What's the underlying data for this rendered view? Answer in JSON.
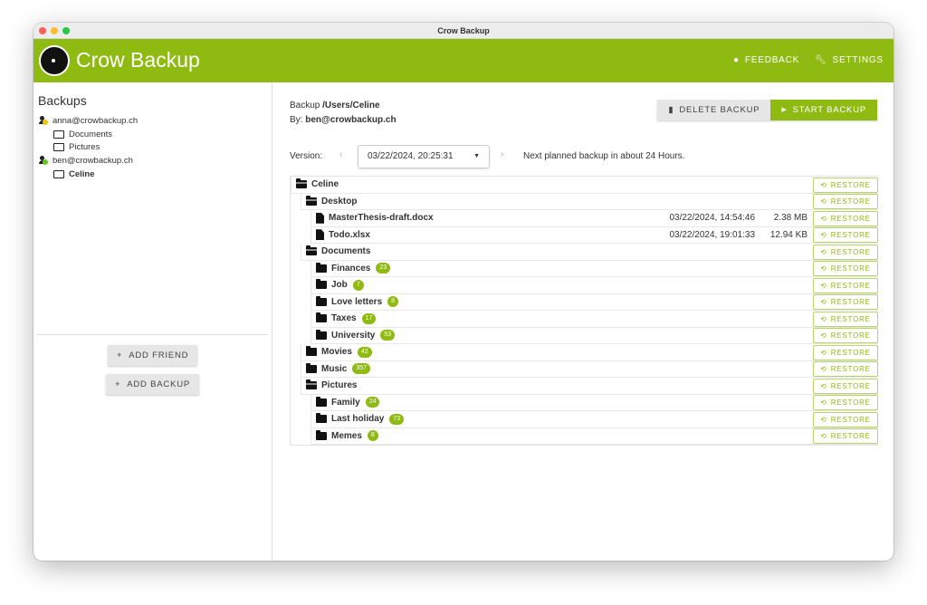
{
  "window": {
    "title": "Crow Backup"
  },
  "header": {
    "app_title": "Crow Backup",
    "feedback": "FEEDBACK",
    "settings": "SETTINGS",
    "brand_color": "#8fba12"
  },
  "sidebar": {
    "title": "Backups",
    "users": [
      {
        "email": "anna@crowbackup.ch",
        "status_color": "#f5c400",
        "folders": [
          "Documents",
          "Pictures"
        ]
      },
      {
        "email": "ben@crowbackup.ch",
        "status_color": "#5ad01e",
        "folders": [
          "Celine"
        ]
      }
    ],
    "add_friend": "ADD FRIEND",
    "add_backup": "ADD BACKUP"
  },
  "main": {
    "backup_label": "Backup",
    "backup_path": "/Users/Celine",
    "by_label": "By:",
    "by_user": "ben@crowbackup.ch",
    "delete_label": "DELETE BACKUP",
    "start_label": "START BACKUP",
    "version_label": "Version:",
    "version_value": "03/22/2024, 20:25:31",
    "next_backup": "Next planned backup in about 24 Hours.",
    "restore_label": "RESTORE",
    "rows": [
      {
        "name": "Celine",
        "type": "folder-open",
        "level": 0
      },
      {
        "name": "Desktop",
        "type": "folder-open",
        "level": 1
      },
      {
        "name": "MasterThesis-draft.docx",
        "type": "file",
        "level": 2,
        "date": "03/22/2024, 14:54:46",
        "size": "2.38 MB"
      },
      {
        "name": "Todo.xlsx",
        "type": "file",
        "level": 2,
        "date": "03/22/2024, 19:01:33",
        "size": "12.94 KB"
      },
      {
        "name": "Documents",
        "type": "folder-open",
        "level": 1
      },
      {
        "name": "Finances",
        "type": "folder",
        "level": 2,
        "count": "23"
      },
      {
        "name": "Job",
        "type": "folder",
        "level": 2,
        "count": "7"
      },
      {
        "name": "Love letters",
        "type": "folder",
        "level": 2,
        "count": "8"
      },
      {
        "name": "Taxes",
        "type": "folder",
        "level": 2,
        "count": "17"
      },
      {
        "name": "University",
        "type": "folder",
        "level": 2,
        "count": "53"
      },
      {
        "name": "Movies",
        "type": "folder",
        "level": 1,
        "count": "42"
      },
      {
        "name": "Music",
        "type": "folder",
        "level": 1,
        "count": "357"
      },
      {
        "name": "Pictures",
        "type": "folder-open",
        "level": 1
      },
      {
        "name": "Family",
        "type": "folder",
        "level": 2,
        "count": "24"
      },
      {
        "name": "Last holiday",
        "type": "folder",
        "level": 2,
        "count": "73"
      },
      {
        "name": "Memes",
        "type": "folder",
        "level": 2,
        "count": "8"
      }
    ]
  }
}
